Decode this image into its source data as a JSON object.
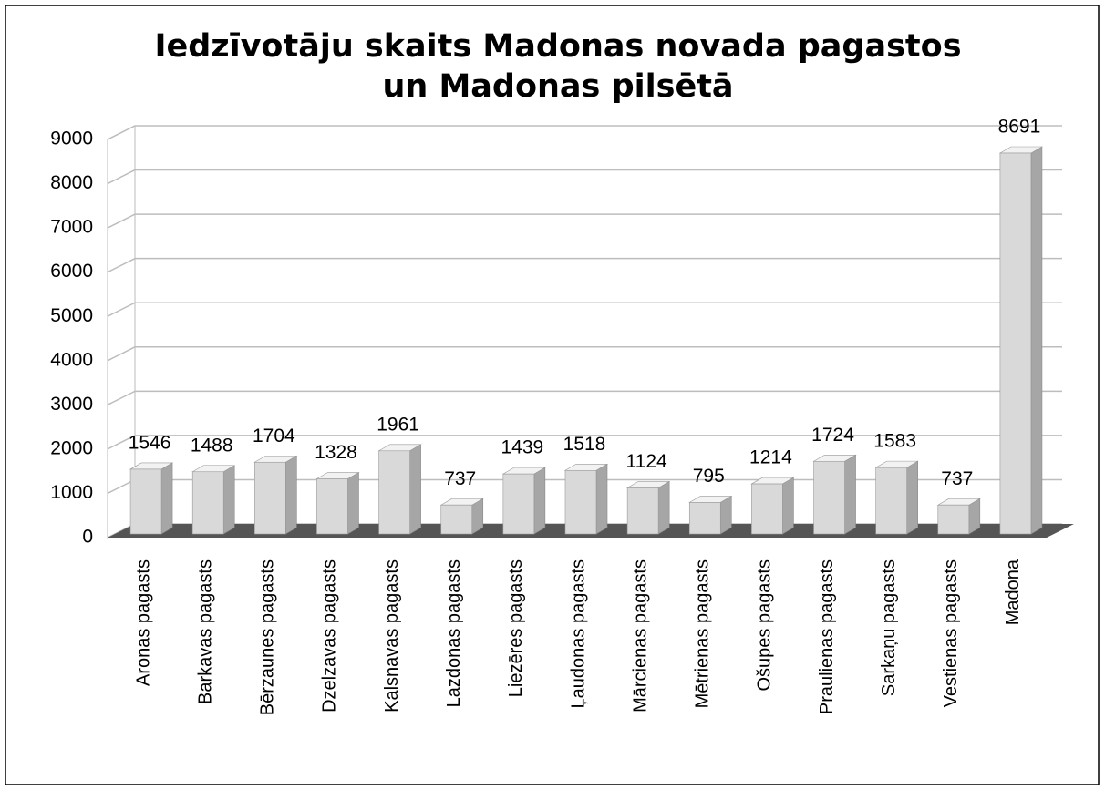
{
  "chart_data": {
    "type": "bar3d",
    "title": [
      "Iedzīvotāju skaits Madonas novada pagastos",
      "un Madonas pilsētā"
    ],
    "categories": [
      "Aronas pagasts",
      "Barkavas pagasts",
      "Bērzaunes pagasts",
      "Dzelzavas pagasts",
      "Kalsnavas pagasts",
      "Lazdonas pagasts",
      "Liezēres pagasts",
      "Ļaudonas pagasts",
      "Mārcienas pagasts",
      "Mētrienas pagasts",
      "Ošupes pagasts",
      "Praulienas pagasts",
      "Sarkaņu pagasts",
      "Vestienas pagasts",
      "Madona"
    ],
    "values": [
      1546,
      1488,
      1704,
      1328,
      1961,
      737,
      1439,
      1518,
      1124,
      795,
      1214,
      1724,
      1583,
      737,
      8691
    ],
    "color": "#d9d9d9",
    "ylim": [
      0,
      9000
    ],
    "yticks": [
      0,
      1000,
      2000,
      3000,
      4000,
      5000,
      6000,
      7000,
      8000,
      9000
    ],
    "grid": true
  }
}
